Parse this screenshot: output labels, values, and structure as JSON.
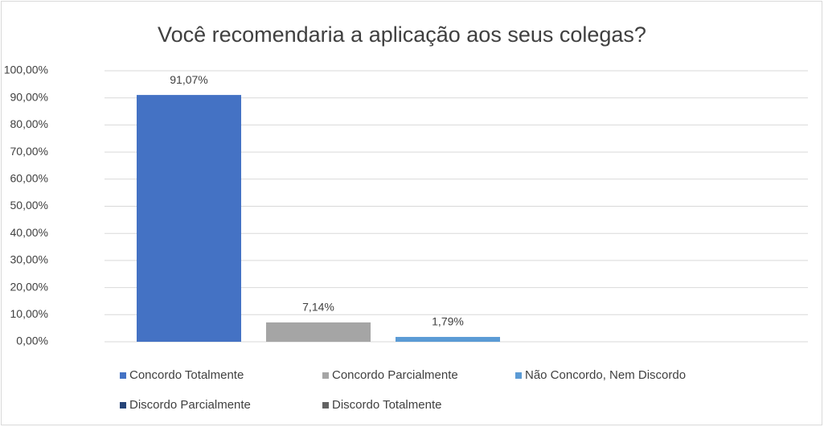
{
  "chart_data": {
    "type": "bar",
    "title": "Você recomendaria a aplicação aos seus colegas?",
    "categories": [
      null
    ],
    "series": [
      {
        "name": "Concordo Totalmente",
        "color": "#4472c4",
        "values": [
          91.07
        ],
        "value_labels": [
          "91,07%"
        ]
      },
      {
        "name": "Concordo Parcialmente",
        "color": "#a5a5a5",
        "values": [
          7.14
        ],
        "value_labels": [
          "7,14%"
        ]
      },
      {
        "name": "Não Concordo, Nem Discordo",
        "color": "#5b9bd5",
        "values": [
          1.79
        ],
        "value_labels": [
          "1,79%"
        ]
      },
      {
        "name": "Discordo Parcialmente",
        "color": "#264478",
        "values": [
          0
        ]
      },
      {
        "name": "Discordo Totalmente",
        "color": "#636363",
        "values": [
          0
        ]
      }
    ],
    "ylim": [
      0,
      100
    ],
    "yticks": [
      {
        "value": 0,
        "label": "0,00%"
      },
      {
        "value": 10,
        "label": "10,00%"
      },
      {
        "value": 20,
        "label": "20,00%"
      },
      {
        "value": 30,
        "label": "30,00%"
      },
      {
        "value": 40,
        "label": "40,00%"
      },
      {
        "value": 50,
        "label": "50,00%"
      },
      {
        "value": 60,
        "label": "60,00%"
      },
      {
        "value": 70,
        "label": "70,00%"
      },
      {
        "value": 80,
        "label": "80,00%"
      },
      {
        "value": 90,
        "label": "90,00%"
      },
      {
        "value": 100,
        "label": "100,00%"
      }
    ],
    "grid": true,
    "legend": "bottom"
  }
}
